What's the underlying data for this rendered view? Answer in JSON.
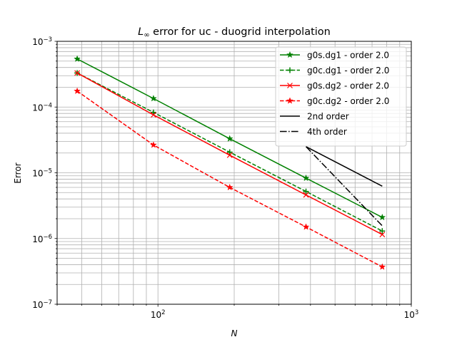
{
  "chart_data": {
    "type": "line",
    "title_prefix": "L",
    "title_subscript": "∞",
    "title_rest": " error for uc - duogrid interpolation",
    "xlabel": "N",
    "ylabel": "Error",
    "xscale": "log",
    "yscale": "log",
    "xlim": [
      40,
      1000
    ],
    "ylim": [
      1e-07,
      0.001
    ],
    "grid": true,
    "legend_position": "upper right",
    "x_major_ticks": [
      {
        "value": 100,
        "base": "10",
        "exp": "2"
      },
      {
        "value": 1000,
        "base": "10",
        "exp": "3"
      }
    ],
    "y_major_ticks": [
      {
        "value": 1e-07,
        "base": "10",
        "exp": "−7"
      },
      {
        "value": 1e-06,
        "base": "10",
        "exp": "−6"
      },
      {
        "value": 1e-05,
        "base": "10",
        "exp": "−5"
      },
      {
        "value": 0.0001,
        "base": "10",
        "exp": "−4"
      },
      {
        "value": 0.001,
        "base": "10",
        "exp": "−3"
      }
    ],
    "series": [
      {
        "name": "g0s.dg1 - order 2.0",
        "color": "#008000",
        "linestyle": "solid",
        "marker": "star",
        "x": [
          48,
          96,
          192,
          384,
          768
        ],
        "y": [
          0.00054,
          0.000135,
          3.3e-05,
          8.3e-06,
          2.1e-06
        ]
      },
      {
        "name": "g0c.dg1 - order 2.0",
        "color": "#008000",
        "linestyle": "dashed",
        "marker": "plus",
        "x": [
          48,
          96,
          192,
          384,
          768
        ],
        "y": [
          0.00033,
          8.3e-05,
          2.06e-05,
          5.2e-06,
          1.3e-06
        ]
      },
      {
        "name": "g0s.dg2 - order 2.0",
        "color": "#ff0000",
        "linestyle": "solid",
        "marker": "x",
        "x": [
          48,
          96,
          192,
          384,
          768
        ],
        "y": [
          0.00033,
          7.6e-05,
          1.85e-05,
          4.6e-06,
          1.15e-06
        ]
      },
      {
        "name": "g0c.dg2 - order 2.0",
        "color": "#ff0000",
        "linestyle": "dashed",
        "marker": "star",
        "x": [
          48,
          96,
          192,
          384,
          768
        ],
        "y": [
          0.000175,
          2.65e-05,
          6e-06,
          1.5e-06,
          3.7e-07
        ]
      },
      {
        "name": "2nd order",
        "color": "#000000",
        "linestyle": "solid",
        "marker": "none",
        "x": [
          384,
          768
        ],
        "y": [
          2.5e-05,
          6.25e-06
        ]
      },
      {
        "name": "4th order",
        "color": "#000000",
        "linestyle": "dashdot",
        "marker": "none",
        "x": [
          384,
          768
        ],
        "y": [
          2.5e-05,
          1.56e-06
        ]
      }
    ]
  }
}
